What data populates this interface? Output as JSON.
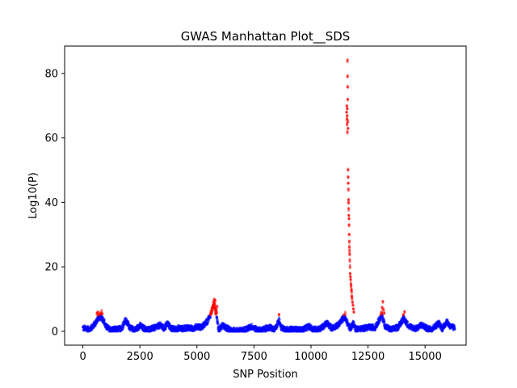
{
  "chart_data": {
    "type": "scatter",
    "title": "GWAS Manhattan Plot__SDS",
    "xlabel": "SNP Position",
    "ylabel": "Log10(P)",
    "xlim": [
      -800,
      16800
    ],
    "ylim": [
      -4.3,
      88.5
    ],
    "xticks": [
      0,
      2500,
      5000,
      7500,
      10000,
      12500,
      15000
    ],
    "yticks": [
      0,
      20,
      40,
      60,
      80
    ],
    "grid": false,
    "threshold": 5,
    "colors": {
      "significant": "#ff0000",
      "background": "#0000ff"
    },
    "baseline": [
      [
        0,
        1
      ],
      [
        300,
        0.6
      ],
      [
        550,
        2.5
      ],
      [
        650,
        4
      ],
      [
        780,
        4.5
      ],
      [
        900,
        3.5
      ],
      [
        1000,
        1.5
      ],
      [
        1200,
        0.5
      ],
      [
        1500,
        0.6
      ],
      [
        1700,
        1
      ],
      [
        1850,
        3.5
      ],
      [
        1950,
        2.5
      ],
      [
        2100,
        0.8
      ],
      [
        2300,
        0.5
      ],
      [
        2500,
        1.8
      ],
      [
        2600,
        1.2
      ],
      [
        2800,
        0.5
      ],
      [
        3000,
        0.8
      ],
      [
        3200,
        1.2
      ],
      [
        3400,
        2
      ],
      [
        3550,
        0.8
      ],
      [
        3700,
        2.5
      ],
      [
        3850,
        1
      ],
      [
        4000,
        0.6
      ],
      [
        4200,
        1
      ],
      [
        4400,
        0.8
      ],
      [
        4600,
        1.2
      ],
      [
        4800,
        0.8
      ],
      [
        5000,
        1.5
      ],
      [
        5200,
        1.2
      ],
      [
        5450,
        3
      ],
      [
        5600,
        5.5
      ],
      [
        5750,
        8
      ],
      [
        5850,
        5
      ],
      [
        5950,
        0.3
      ],
      [
        6100,
        1.8
      ],
      [
        6300,
        1
      ],
      [
        6500,
        0.2
      ],
      [
        6800,
        0.2
      ],
      [
        7000,
        0.3
      ],
      [
        7200,
        0.8
      ],
      [
        7400,
        1.5
      ],
      [
        7600,
        0.6
      ],
      [
        7800,
        0.3
      ],
      [
        8000,
        0.8
      ],
      [
        8200,
        1.2
      ],
      [
        8400,
        0.4
      ],
      [
        8600,
        3.5
      ],
      [
        8700,
        1
      ],
      [
        9000,
        0.5
      ],
      [
        9300,
        0.6
      ],
      [
        9600,
        0.4
      ],
      [
        9900,
        1.5
      ],
      [
        10100,
        0.6
      ],
      [
        10400,
        0.8
      ],
      [
        10700,
        2.5
      ],
      [
        10900,
        1
      ],
      [
        11200,
        2
      ],
      [
        11450,
        4.5
      ],
      [
        11600,
        2.5
      ],
      [
        11700,
        0.8
      ],
      [
        11850,
        2.5
      ],
      [
        11950,
        0.8
      ],
      [
        12200,
        0.8
      ],
      [
        12500,
        1.2
      ],
      [
        12800,
        1.2
      ],
      [
        13100,
        5
      ],
      [
        13250,
        1.5
      ],
      [
        13500,
        0.5
      ],
      [
        13800,
        1.2
      ],
      [
        14050,
        4
      ],
      [
        14300,
        1.5
      ],
      [
        14600,
        0.8
      ],
      [
        14850,
        2
      ],
      [
        15100,
        0.8
      ],
      [
        15300,
        0.8
      ],
      [
        15600,
        2.5
      ],
      [
        15750,
        0.8
      ],
      [
        15950,
        3
      ],
      [
        16100,
        1.5
      ],
      [
        16300,
        1
      ]
    ],
    "significant_points": [
      [
        620,
        5.5
      ],
      [
        650,
        5.8
      ],
      [
        700,
        5.2
      ],
      [
        760,
        5.6
      ],
      [
        820,
        6
      ],
      [
        850,
        5.4
      ],
      [
        5650,
        6.5
      ],
      [
        5700,
        8
      ],
      [
        5720,
        9
      ],
      [
        5740,
        7.5
      ],
      [
        5760,
        10
      ],
      [
        5780,
        8.5
      ],
      [
        5800,
        9.5
      ],
      [
        5820,
        7
      ],
      [
        5840,
        6.5
      ],
      [
        5860,
        6
      ],
      [
        5880,
        7.8
      ],
      [
        8600,
        5.2
      ],
      [
        11500,
        5.5
      ],
      [
        11560,
        68
      ],
      [
        11570,
        70
      ],
      [
        11575,
        66
      ],
      [
        11580,
        64
      ],
      [
        11585,
        67
      ],
      [
        11590,
        69
      ],
      [
        11595,
        62
      ],
      [
        11600,
        84
      ],
      [
        11603,
        79
      ],
      [
        11607,
        76
      ],
      [
        11610,
        72
      ],
      [
        11615,
        65
      ],
      [
        11620,
        63
      ],
      [
        11625,
        50
      ],
      [
        11630,
        48
      ],
      [
        11635,
        46
      ],
      [
        11640,
        44
      ],
      [
        11645,
        41
      ],
      [
        11650,
        40
      ],
      [
        11655,
        38
      ],
      [
        11660,
        36
      ],
      [
        11665,
        35
      ],
      [
        11670,
        33
      ],
      [
        11675,
        30
      ],
      [
        11680,
        28
      ],
      [
        11685,
        26
      ],
      [
        11690,
        25
      ],
      [
        11695,
        24
      ],
      [
        11700,
        22
      ],
      [
        11710,
        20
      ],
      [
        11720,
        18
      ],
      [
        11730,
        17
      ],
      [
        11740,
        16
      ],
      [
        11750,
        15
      ],
      [
        11760,
        14
      ],
      [
        11770,
        13
      ],
      [
        11780,
        12
      ],
      [
        11790,
        11
      ],
      [
        11800,
        10
      ],
      [
        11820,
        9
      ],
      [
        11840,
        8
      ],
      [
        11860,
        7
      ],
      [
        11880,
        6
      ],
      [
        13080,
        6
      ],
      [
        13120,
        7.5
      ],
      [
        13150,
        9
      ],
      [
        13180,
        6.5
      ],
      [
        13210,
        5.5
      ],
      [
        14050,
        5.2
      ],
      [
        14100,
        6
      ]
    ]
  }
}
